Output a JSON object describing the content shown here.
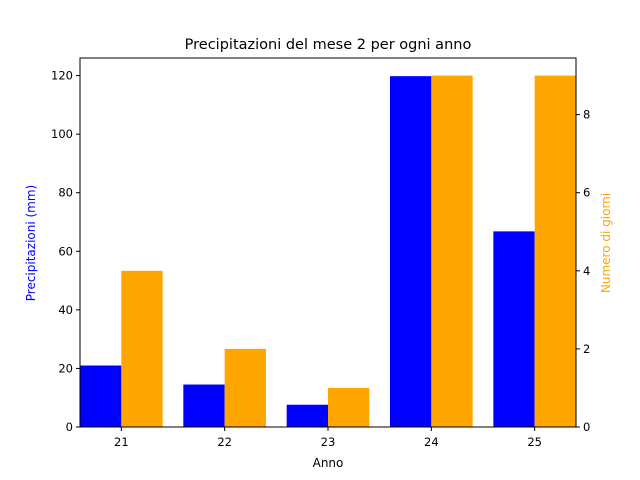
{
  "chart_data": {
    "type": "bar",
    "title": "Precipitazioni del mese 2 per ogni anno",
    "xlabel": "Anno",
    "ylabel": "Precipitazioni (mm)",
    "y2label": "Numero di giorni",
    "categories": [
      "21",
      "22",
      "23",
      "24",
      "25"
    ],
    "ylim": [
      0,
      126
    ],
    "y2lim": [
      0,
      9.45
    ],
    "yticks": [
      0,
      20,
      40,
      60,
      80,
      100,
      120
    ],
    "y2ticks": [
      0,
      2,
      4,
      6,
      8
    ],
    "grid": false,
    "series": [
      {
        "axis": "left",
        "color": "#0000ff",
        "values": [
          21.0,
          14.5,
          7.6,
          119.8,
          66.8
        ]
      },
      {
        "axis": "right",
        "color": "#ffa500",
        "values": [
          4,
          2,
          1,
          9,
          9
        ]
      }
    ]
  },
  "colors": {
    "ylabel": "#0000ff",
    "y2label": "#ffa500"
  }
}
